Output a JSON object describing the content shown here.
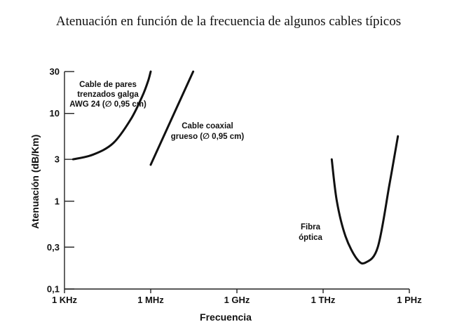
{
  "chart_data": {
    "type": "line",
    "title": "Atenuación en función de la frecuencia de algunos cables típicos",
    "xlabel": "Frecuencia",
    "ylabel": "Atenuación (dB/Km)",
    "x_scale": "log",
    "y_scale": "log",
    "x_ticks": [
      {
        "value": 1000,
        "label": "1 KHz"
      },
      {
        "value": 1000000,
        "label": "1 MHz"
      },
      {
        "value": 1000000000,
        "label": "1 GHz"
      },
      {
        "value": 1000000000000,
        "label": "1 THz"
      },
      {
        "value": 1000000000000000,
        "label": "1 PHz"
      }
    ],
    "y_ticks": [
      {
        "value": 0.1,
        "label": "0,1"
      },
      {
        "value": 0.3,
        "label": "0,3"
      },
      {
        "value": 1,
        "label": "1"
      },
      {
        "value": 3,
        "label": "3"
      },
      {
        "value": 10,
        "label": "10"
      },
      {
        "value": 30,
        "label": "30"
      }
    ],
    "xlim": [
      1000,
      1000000000000000
    ],
    "ylim": [
      0.1,
      30
    ],
    "grid": false,
    "series": [
      {
        "name": "Cable de pares trenzados galga AWG 24 (∅ 0,95 cm)",
        "label_lines": [
          "Cable de pares",
          "trenzados galga",
          "AWG 24 (∅ 0,95 cm)"
        ],
        "x": [
          2000,
          10000,
          50000,
          200000,
          500000,
          800000,
          1000000
        ],
        "y": [
          3,
          3.4,
          4.6,
          8.5,
          15.5,
          23,
          30
        ]
      },
      {
        "name": "Cable coaxial grueso (∅ 0,95 cm)",
        "label_lines": [
          "Cable coaxial",
          "grueso (∅ 0,95 cm)"
        ],
        "x": [
          1000000,
          30000000
        ],
        "y": [
          2.6,
          30
        ]
      },
      {
        "name": "Fibra óptica",
        "label_lines": [
          "Fibra",
          "óptica"
        ],
        "x": [
          2000000000000,
          3000000000000,
          6000000000000,
          15000000000000,
          30000000000000,
          80000000000000,
          200000000000000,
          400000000000000
        ],
        "y": [
          3,
          1,
          0.4,
          0.22,
          0.2,
          0.3,
          1.5,
          5.5
        ]
      }
    ]
  }
}
